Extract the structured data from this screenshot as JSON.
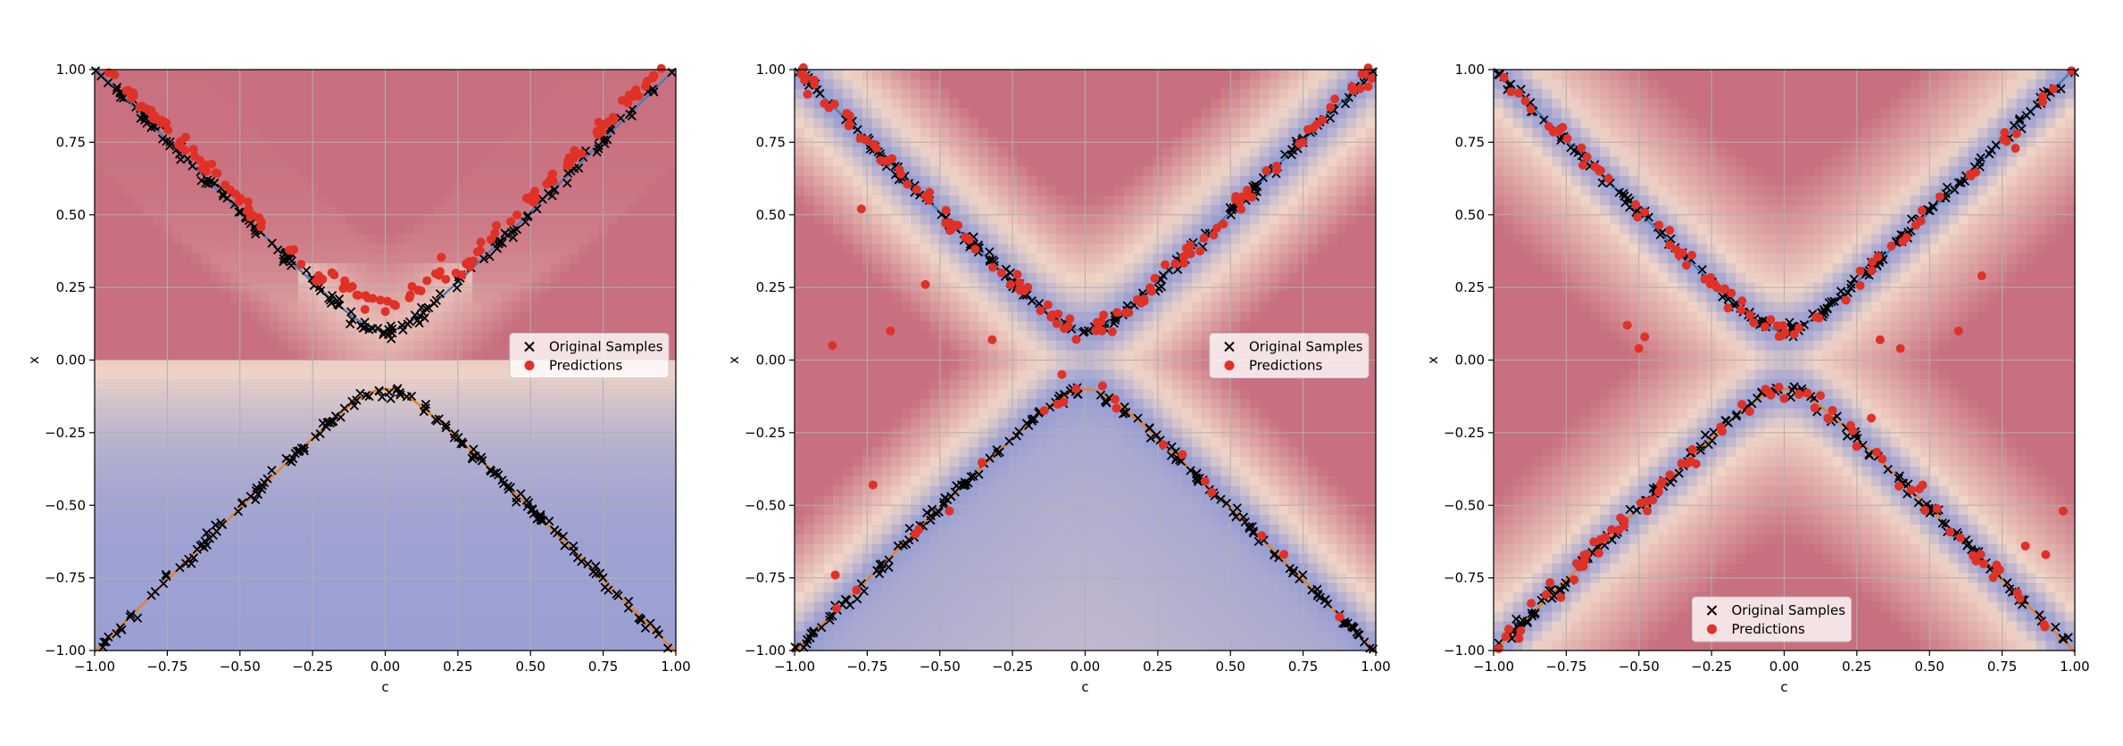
{
  "chart_data": [
    {
      "type": "scatter",
      "panel": "left",
      "xlabel": "c",
      "ylabel": "x",
      "xlim": [
        -1.0,
        1.0
      ],
      "ylim": [
        -1.0,
        1.0
      ],
      "xticks": [
        "−1.00",
        "−0.75",
        "−0.50",
        "−0.25",
        "0.00",
        "0.25",
        "0.50",
        "0.75",
        "1.00"
      ],
      "yticks": [
        "−1.00",
        "−0.75",
        "−0.50",
        "−0.25",
        "0.00",
        "0.25",
        "0.50",
        "0.75",
        "1.00"
      ],
      "grid": true,
      "background": "density heatmap",
      "legend": {
        "position": "center-right",
        "entries": [
          "Original Samples",
          "Predictions"
        ]
      },
      "series": [
        {
          "name": "Original Samples",
          "marker": "x",
          "color": "#000000",
          "curve": "x = ±sqrt(c^2 + 0.01)"
        },
        {
          "name": "Predictions",
          "marker": "o",
          "color": "#e03127",
          "branch": "upper only"
        }
      ]
    },
    {
      "type": "scatter",
      "panel": "middle",
      "xlabel": "c",
      "ylabel": "x",
      "xlim": [
        -1.0,
        1.0
      ],
      "ylim": [
        -1.0,
        1.0
      ],
      "xticks": [
        "−1.00",
        "−0.75",
        "−0.50",
        "−0.25",
        "0.00",
        "0.25",
        "0.50",
        "0.75",
        "1.00"
      ],
      "yticks": [
        "−1.00",
        "−0.75",
        "−0.50",
        "−0.25",
        "0.00",
        "0.25",
        "0.50",
        "0.75",
        "1.00"
      ],
      "grid": true,
      "background": "density heatmap",
      "legend": {
        "position": "center-right",
        "entries": [
          "Original Samples",
          "Predictions"
        ]
      },
      "series": [
        {
          "name": "Original Samples",
          "marker": "x",
          "color": "#000000",
          "curve": "x = ±sqrt(c^2 + 0.01)"
        },
        {
          "name": "Predictions",
          "marker": "o",
          "color": "#e03127",
          "branch": "both"
        }
      ]
    },
    {
      "type": "scatter",
      "panel": "right",
      "xlabel": "c",
      "ylabel": "x",
      "xlim": [
        -1.0,
        1.0
      ],
      "ylim": [
        -1.0,
        1.0
      ],
      "xticks": [
        "−1.00",
        "−0.75",
        "−0.50",
        "−0.25",
        "0.00",
        "0.25",
        "0.50",
        "0.75",
        "1.00"
      ],
      "yticks": [
        "−1.00",
        "−0.75",
        "−0.50",
        "−0.25",
        "0.00",
        "0.25",
        "0.50",
        "0.75",
        "1.00"
      ],
      "grid": true,
      "background": "density heatmap",
      "legend": {
        "position": "bottom-center",
        "entries": [
          "Original Samples",
          "Predictions"
        ]
      },
      "series": [
        {
          "name": "Original Samples",
          "marker": "x",
          "color": "#000000",
          "curve": "x = ±sqrt(c^2 + 0.01)"
        },
        {
          "name": "Predictions",
          "marker": "o",
          "color": "#e03127",
          "branch": "all four arms"
        }
      ]
    }
  ],
  "colors": {
    "high_density": "#c8707f",
    "mid_density": "#f0d4c6",
    "low_density": "#8593d6",
    "curve_upper": "#4a7fb5",
    "curve_lower": "#e8802a",
    "prediction": "#e03127",
    "sample": "#000000",
    "grid": "#b0b0b0"
  }
}
